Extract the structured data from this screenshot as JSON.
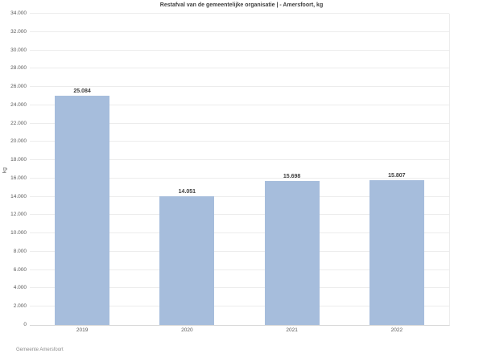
{
  "title": "Restafval van de gemeentelijke organisatie | - Amersfoort, kg",
  "footer": "Gemeente Amersfoort",
  "chart_data": {
    "type": "bar",
    "title": "Restafval van de gemeentelijke organisatie | - Amersfoort, kg",
    "categories": [
      "2019",
      "2020",
      "2021",
      "2022"
    ],
    "values": [
      25084,
      14051,
      15698,
      15807
    ],
    "value_labels": [
      "25.084",
      "14.051",
      "15.698",
      "15.807"
    ],
    "xlabel": "",
    "ylabel": "kg",
    "ylim": [
      0,
      34000
    ],
    "ytick_step": 2000,
    "ytick_labels": [
      "0",
      "2.000",
      "4.000",
      "6.000",
      "8.000",
      "10.000",
      "12.000",
      "14.000",
      "16.000",
      "18.000",
      "20.000",
      "22.000",
      "24.000",
      "26.000",
      "28.000",
      "30.000",
      "32.000",
      "34.000"
    ],
    "grid": true,
    "legend": "none",
    "bar_color": "#a6bddc",
    "gridline_color": "#ececec",
    "axis_line_color": "#d9d9d9",
    "tick_label_color": "#595959",
    "source": "Gemeente Amersfoort"
  }
}
